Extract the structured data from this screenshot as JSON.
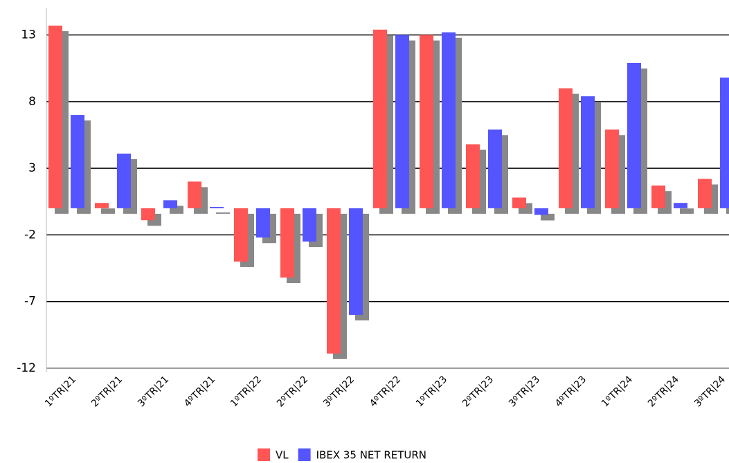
{
  "chart_data": {
    "type": "bar",
    "categories": [
      "1ºTR|21",
      "2ºTR|21",
      "3ºTR|21",
      "4ºTR|21",
      "1ºTR|22",
      "2ºTR|22",
      "3ºTR|22",
      "4ºTR|22",
      "1ºTR|23",
      "2ºTR|23",
      "3ºTR|23",
      "4ºTR|23",
      "1ºTR|24",
      "2ºTR|24",
      "3ºTR|24"
    ],
    "series": [
      {
        "name": "VL",
        "color": "#ff5555",
        "values": [
          13.7,
          0.4,
          -0.9,
          2.0,
          -4.0,
          -5.2,
          -10.9,
          13.4,
          13.0,
          4.8,
          0.8,
          9.0,
          5.9,
          1.7,
          2.2
        ]
      },
      {
        "name": "IBEX 35 NET RETURN",
        "color": "#5555ff",
        "values": [
          7.0,
          4.1,
          0.6,
          0.1,
          -2.2,
          -2.5,
          -8.0,
          13.0,
          13.2,
          5.9,
          -0.5,
          8.4,
          10.9,
          0.4,
          9.8
        ]
      }
    ],
    "ylim": [
      -12,
      15
    ],
    "yticks": [
      -12,
      -7,
      -2,
      3,
      8,
      13
    ],
    "grid": true,
    "shadow_color": "#888888",
    "legend": "bottom"
  }
}
